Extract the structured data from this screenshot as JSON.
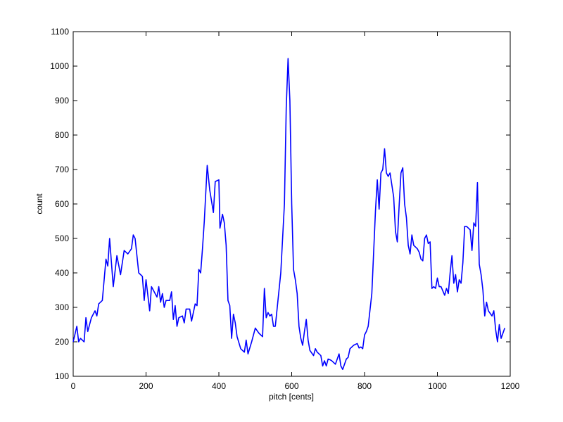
{
  "chart_data": {
    "type": "line",
    "xlabel": "pitch [cents]",
    "ylabel": "count",
    "x": [
      0,
      10,
      15,
      20,
      30,
      35,
      40,
      50,
      60,
      65,
      70,
      80,
      90,
      95,
      100,
      105,
      110,
      120,
      130,
      140,
      150,
      160,
      165,
      170,
      180,
      190,
      195,
      200,
      210,
      215,
      220,
      230,
      235,
      240,
      245,
      250,
      255,
      265,
      270,
      275,
      280,
      285,
      290,
      300,
      305,
      310,
      320,
      325,
      335,
      340,
      345,
      350,
      355,
      360,
      368,
      375,
      385,
      390,
      400,
      403,
      410,
      415,
      420,
      425,
      430,
      435,
      440,
      445,
      450,
      460,
      470,
      475,
      480,
      490,
      500,
      510,
      520,
      525,
      530,
      535,
      540,
      545,
      550,
      555,
      570,
      580,
      585,
      590,
      595,
      600,
      605,
      610,
      615,
      620,
      625,
      630,
      635,
      640,
      645,
      650,
      660,
      665,
      670,
      680,
      685,
      690,
      695,
      700,
      705,
      710,
      720,
      730,
      735,
      740,
      745,
      750,
      755,
      760,
      770,
      780,
      785,
      790,
      795,
      800,
      805,
      810,
      820,
      830,
      835,
      840,
      845,
      850,
      855,
      860,
      865,
      870,
      880,
      885,
      890,
      895,
      900,
      905,
      910,
      915,
      920,
      925,
      930,
      935,
      945,
      950,
      955,
      960,
      965,
      970,
      975,
      980,
      985,
      990,
      995,
      1000,
      1005,
      1010,
      1020,
      1025,
      1030,
      1035,
      1040,
      1045,
      1050,
      1055,
      1060,
      1065,
      1070,
      1075,
      1080,
      1090,
      1095,
      1100,
      1105,
      1110,
      1115,
      1120,
      1125,
      1130,
      1135,
      1140,
      1150,
      1155,
      1160,
      1165,
      1170,
      1175,
      1185
    ],
    "series": [
      {
        "color": "#0000ff",
        "values": [
          200,
          245,
          200,
          210,
          200,
          270,
          230,
          270,
          290,
          275,
          310,
          320,
          440,
          420,
          500,
          430,
          360,
          450,
          395,
          465,
          455,
          470,
          510,
          500,
          400,
          390,
          320,
          380,
          290,
          360,
          350,
          330,
          360,
          315,
          340,
          300,
          320,
          320,
          345,
          265,
          305,
          245,
          270,
          275,
          255,
          295,
          295,
          260,
          310,
          305,
          410,
          400,
          470,
          550,
          712,
          640,
          575,
          665,
          670,
          530,
          570,
          545,
          480,
          320,
          305,
          210,
          280,
          255,
          215,
          180,
          170,
          205,
          165,
          200,
          240,
          225,
          215,
          355,
          270,
          285,
          275,
          280,
          245,
          245,
          400,
          600,
          880,
          1022,
          900,
          600,
          410,
          380,
          340,
          245,
          210,
          190,
          230,
          265,
          205,
          175,
          160,
          180,
          170,
          160,
          130,
          145,
          130,
          150,
          148,
          145,
          135,
          165,
          130,
          120,
          135,
          150,
          155,
          180,
          190,
          195,
          182,
          185,
          180,
          220,
          230,
          245,
          340,
          580,
          670,
          585,
          690,
          700,
          760,
          690,
          680,
          690,
          620,
          520,
          490,
          595,
          690,
          705,
          600,
          560,
          480,
          455,
          510,
          480,
          470,
          460,
          440,
          435,
          500,
          510,
          485,
          490,
          355,
          360,
          355,
          385,
          360,
          360,
          335,
          355,
          340,
          400,
          450,
          370,
          395,
          345,
          380,
          370,
          430,
          535,
          535,
          525,
          465,
          545,
          535,
          662,
          425,
          395,
          350,
          275,
          315,
          290,
          275,
          290,
          235,
          200,
          250,
          210,
          240
        ]
      }
    ],
    "xlim": [
      0,
      1200
    ],
    "ylim": [
      100,
      1100
    ],
    "xticks": [
      0,
      200,
      400,
      600,
      800,
      1000,
      1200
    ],
    "yticks": [
      100,
      200,
      300,
      400,
      500,
      600,
      700,
      800,
      900,
      1000,
      1100
    ]
  }
}
